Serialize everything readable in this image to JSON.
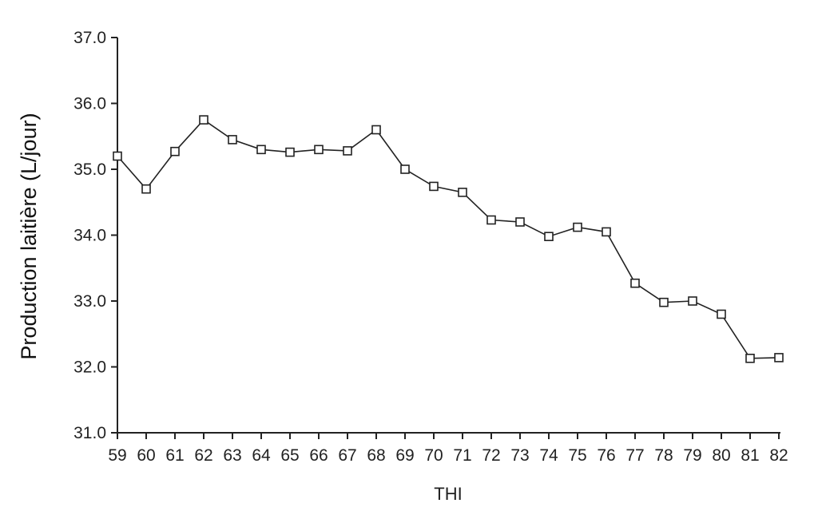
{
  "chart_data": {
    "type": "line",
    "title": "",
    "xlabel": "THI",
    "ylabel": "Production laitière (L/jour)",
    "x": [
      59,
      60,
      61,
      62,
      63,
      64,
      65,
      66,
      67,
      68,
      69,
      70,
      71,
      72,
      73,
      74,
      75,
      76,
      77,
      78,
      79,
      80,
      81,
      82
    ],
    "y": [
      35.2,
      34.7,
      35.27,
      35.75,
      35.45,
      35.3,
      35.26,
      35.3,
      35.28,
      35.6,
      35.0,
      34.74,
      34.65,
      34.23,
      34.2,
      33.98,
      34.12,
      34.05,
      33.27,
      32.98,
      33.0,
      32.8,
      32.13,
      32.14
    ],
    "xticks": [
      "59",
      "60",
      "61",
      "62",
      "63",
      "64",
      "65",
      "66",
      "67",
      "68",
      "69",
      "70",
      "71",
      "72",
      "73",
      "74",
      "75",
      "76",
      "77",
      "78",
      "79",
      "80",
      "81",
      "82"
    ],
    "yticks": [
      "31.0",
      "32.0",
      "33.0",
      "34.0",
      "35.0",
      "36.0",
      "37.0"
    ],
    "xlim": [
      59,
      82
    ],
    "ylim": [
      31.0,
      37.0
    ],
    "marker": "square-open",
    "line_color": "#222222",
    "grid": false,
    "legend": "none"
  }
}
